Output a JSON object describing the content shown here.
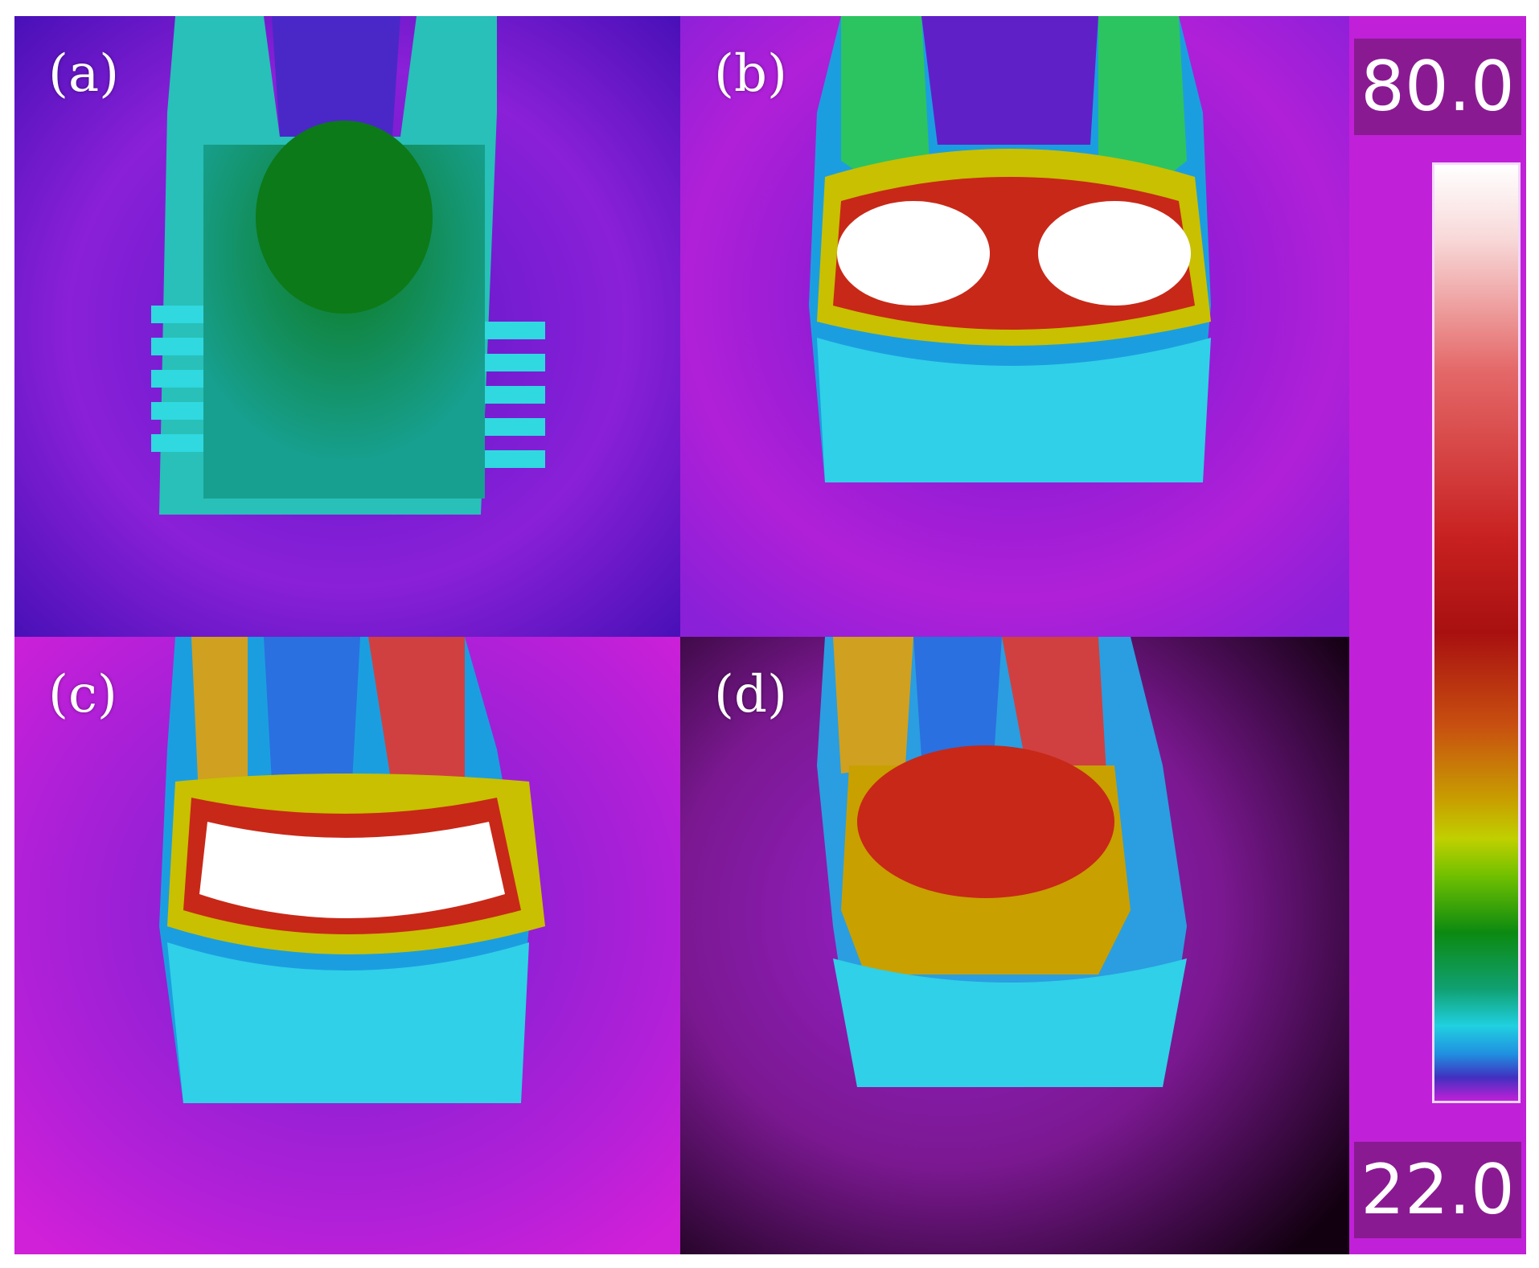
{
  "panels": [
    {
      "label": "(a)",
      "description_name": "thermal-image-a"
    },
    {
      "label": "(b)",
      "description_name": "thermal-image-b"
    },
    {
      "label": "(c)",
      "description_name": "thermal-image-c"
    },
    {
      "label": "(d)",
      "description_name": "thermal-image-d"
    }
  ],
  "scale": {
    "max": "80.0",
    "min": "22.0",
    "colors": [
      "#ffffff",
      "#c81818",
      "#d0a000",
      "#0c8a10",
      "#20d0e0",
      "#4030c0",
      "#c020d8"
    ]
  }
}
